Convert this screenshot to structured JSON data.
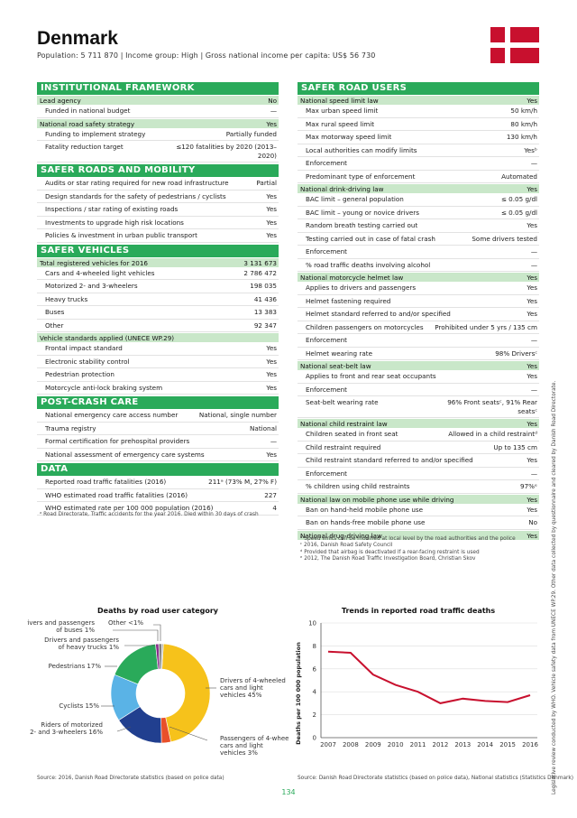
{
  "header": {
    "title": "Denmark",
    "subtitle": "Population: 5 711 870 | Income group: High | Gross national income per capita: US$ 56 730"
  },
  "colors": {
    "accent": "#2aaa5a",
    "subhead_bg": "#c9e7c9",
    "flag_red": "#c8102e"
  },
  "left": {
    "institutional": {
      "title": "INSTITUTIONAL FRAMEWORK",
      "lead_agency": {
        "label": "Lead agency",
        "value": "No"
      },
      "rows1": [
        {
          "label": "Funded in national budget",
          "value": "—"
        }
      ],
      "strategy": {
        "label": "National road safety strategy",
        "value": "Yes"
      },
      "rows2": [
        {
          "label": "Funding to implement strategy",
          "value": "Partially funded"
        },
        {
          "label": "Fatality reduction target",
          "value": "≤120 fatalities by 2020 (2013–2020)"
        }
      ]
    },
    "roads": {
      "title": "SAFER ROADS AND MOBILITY",
      "rows": [
        {
          "label": "Audits or star rating required for new road infrastructure",
          "value": "Partial"
        },
        {
          "label": "Design standards for the safety of pedestrians / cyclists",
          "value": "Yes"
        },
        {
          "label": "Inspections / star rating of existing roads",
          "value": "Yes"
        },
        {
          "label": "Investments to upgrade high risk locations",
          "value": "Yes"
        },
        {
          "label": "Policies & investment in urban public transport",
          "value": "Yes"
        }
      ]
    },
    "vehicles": {
      "title": "SAFER VEHICLES",
      "total": {
        "label": "Total registered vehicles for 2016",
        "value": "3 131 673"
      },
      "rows": [
        {
          "label": "Cars and 4-wheeled light vehicles",
          "value": "2 786 472"
        },
        {
          "label": "Motorized 2- and 3-wheelers",
          "value": "198 035"
        },
        {
          "label": "Heavy trucks",
          "value": "41 436"
        },
        {
          "label": "Buses",
          "value": "13 383"
        },
        {
          "label": "Other",
          "value": "92 347"
        }
      ],
      "standards": {
        "label": "Vehicle standards applied (UNECE WP.29)",
        "value": ""
      },
      "std_rows": [
        {
          "label": "Frontal impact standard",
          "value": "Yes"
        },
        {
          "label": "Electronic stability control",
          "value": "Yes"
        },
        {
          "label": "Pedestrian protection",
          "value": "Yes"
        },
        {
          "label": "Motorcycle anti-lock braking system",
          "value": "Yes"
        }
      ]
    },
    "postcrash": {
      "title": "POST-CRASH CARE",
      "rows": [
        {
          "label": "National emergency care access number",
          "value": "National, single number"
        },
        {
          "label": "Trauma registry",
          "value": "National"
        },
        {
          "label": "Formal certification for prehospital providers",
          "value": "—"
        },
        {
          "label": "National assessment of emergency care systems",
          "value": "Yes"
        }
      ]
    },
    "data": {
      "title": "DATA",
      "rows": [
        {
          "label": "Reported road traffic fatalities (2016)",
          "value": "211ᵃ (73% M, 27% F)"
        },
        {
          "label": "WHO estimated road traffic fatalities (2016)",
          "value": "227"
        },
        {
          "label": "WHO estimated rate per 100 000 population (2016)",
          "value": "4"
        }
      ]
    },
    "footnote": "ᵃ Road Directorate, Traffic accidents for the year 2016. Died within 30 days of crash"
  },
  "right": {
    "title": "SAFER ROAD USERS",
    "speed": {
      "head": {
        "label": "National speed limit law",
        "value": "Yes"
      },
      "rows": [
        {
          "label": "Max urban speed limit",
          "value": "50 km/h"
        },
        {
          "label": "Max rural speed limit",
          "value": "80 km/h"
        },
        {
          "label": "Max motorway speed limit",
          "value": "130 km/h"
        },
        {
          "label": "Local authorities can modify limits",
          "value": "Yesᵇ"
        },
        {
          "label": "Enforcement",
          "value": "—"
        },
        {
          "label": "Predominant type of enforcement",
          "value": "Automated"
        }
      ]
    },
    "drink": {
      "head": {
        "label": "National drink-driving law",
        "value": "Yes"
      },
      "rows": [
        {
          "label": "BAC limit – general population",
          "value": "≤ 0.05 g/dl"
        },
        {
          "label": "BAC limit – young or novice drivers",
          "value": "≤ 0.05 g/dl"
        },
        {
          "label": "Random breath testing carried out",
          "value": "Yes"
        },
        {
          "label": "Testing carried out in case of fatal crash",
          "value": "Some drivers tested"
        },
        {
          "label": "Enforcement",
          "value": "—"
        },
        {
          "label": "% road traffic deaths involving alcohol",
          "value": "—"
        }
      ]
    },
    "helmet": {
      "head": {
        "label": "National motorcycle helmet law",
        "value": "Yes"
      },
      "rows": [
        {
          "label": "Applies to drivers and passengers",
          "value": "Yes"
        },
        {
          "label": "Helmet fastening required",
          "value": "Yes"
        },
        {
          "label": "Helmet standard referred to and/or specified",
          "value": "Yes"
        },
        {
          "label": "Children passengers on motorcycles",
          "value": "Prohibited under 5 yrs / 135 cm"
        },
        {
          "label": "Enforcement",
          "value": "—"
        },
        {
          "label": "Helmet wearing rate",
          "value": "98% Driversᶜ"
        }
      ]
    },
    "seatbelt": {
      "head": {
        "label": "National seat-belt law",
        "value": "Yes"
      },
      "rows": [
        {
          "label": "Applies to front and rear seat occupants",
          "value": "Yes"
        },
        {
          "label": "Enforcement",
          "value": "—"
        },
        {
          "label": "Seat-belt wearing rate",
          "value": "96% Front seatsᶜ, 91% Rear seatsᶜ"
        }
      ]
    },
    "child": {
      "head": {
        "label": "National child restraint law",
        "value": "Yes"
      },
      "rows": [
        {
          "label": "Children seated in front seat",
          "value": "Allowed in a child restraintᵈ"
        },
        {
          "label": "Child restraint required",
          "value": "Up to 135 cm"
        },
        {
          "label": "Child restraint standard referred to and/or specified",
          "value": "Yes"
        },
        {
          "label": "Enforcement",
          "value": "—"
        },
        {
          "label": "% children using child restraints",
          "value": "97%ᵉ"
        }
      ]
    },
    "phone": {
      "head": {
        "label": "National law on mobile phone use while driving",
        "value": "Yes"
      },
      "rows": [
        {
          "label": "Ban on hand-held mobile phone use",
          "value": "Yes"
        },
        {
          "label": "Ban on hands-free mobile phone use",
          "value": "No"
        }
      ]
    },
    "drug": {
      "head": {
        "label": "National drug-driving law",
        "value": "Yes"
      }
    },
    "footnotes": [
      "ᵇ Speed limits can be modified at local level by the road authorities and the police",
      "ᶜ 2016, Danish Road Safety Council",
      "ᵈ Provided that airbag is deactivated if a rear-facing restraint is used",
      "ᵉ 2012, The Danish Road Traffic Investigation Board, Christian Skov"
    ]
  },
  "side_note": "Legislative review conducted by WHO. Vehicle safety data from UNECE WP.29. Other data collected by questionnaire and cleared by Danish Road Directorate.",
  "pie": {
    "title": "Deaths by road user category",
    "source": "Source: 2016, Danish Road Directorate statistics (based on police data)",
    "labels": {
      "drivers4": [
        "Drivers of 4-wheeled",
        "cars and light",
        "vehicles 45%"
      ],
      "passengers4": [
        "Passengers of 4-wheel",
        "cars and light",
        "vehicles 3%"
      ],
      "riders": [
        "Riders of motorized",
        "2- and 3-wheelers 16%"
      ],
      "cyclists": "Cyclists 15%",
      "pedestrians": "Pedestrians 17%",
      "heavy": [
        "Drivers and passengers",
        "of heavy trucks 1%"
      ],
      "buses": [
        "Drivers and passengers",
        "of buses 1%"
      ],
      "other": "Other <1%"
    }
  },
  "line": {
    "title": "Trends in reported road traffic deaths",
    "ylabel": "Deaths per 100 000 population",
    "source": "Source: Danish Road Directorate statistics (based on police data), National statistics (Statistics Denmark)"
  },
  "page_number": "134",
  "chart_data": [
    {
      "type": "pie",
      "title": "Deaths by road user category",
      "categories": [
        "Drivers of 4-wheeled cars and light vehicles",
        "Passengers of 4-wheel cars and light vehicles",
        "Riders of motorized 2- and 3-wheelers",
        "Cyclists",
        "Pedestrians",
        "Drivers and passengers of heavy trucks",
        "Drivers and passengers of buses",
        "Other"
      ],
      "values": [
        45,
        3,
        16,
        15,
        17,
        1,
        1,
        0.5
      ],
      "colors": [
        "#f6c21b",
        "#e8502a",
        "#213f8f",
        "#5ab3e6",
        "#2aaa5a",
        "#8a2d8c",
        "#7f7f7f",
        "#b0b0b0"
      ]
    },
    {
      "type": "line",
      "title": "Trends in reported road traffic deaths",
      "ylabel": "Deaths per 100 000 population",
      "x": [
        "2007",
        "2008",
        "2009",
        "2010",
        "2011",
        "2012",
        "2013",
        "2014",
        "2015",
        "2016"
      ],
      "series": [
        {
          "values": [
            7.5,
            7.4,
            5.5,
            4.6,
            4.0,
            3.0,
            3.4,
            3.2,
            3.1,
            3.7
          ]
        }
      ],
      "ylim": [
        0,
        10
      ],
      "yticks": [
        "0",
        "2",
        "4",
        "6",
        "8",
        "10"
      ],
      "color": "#c8102e"
    }
  ]
}
